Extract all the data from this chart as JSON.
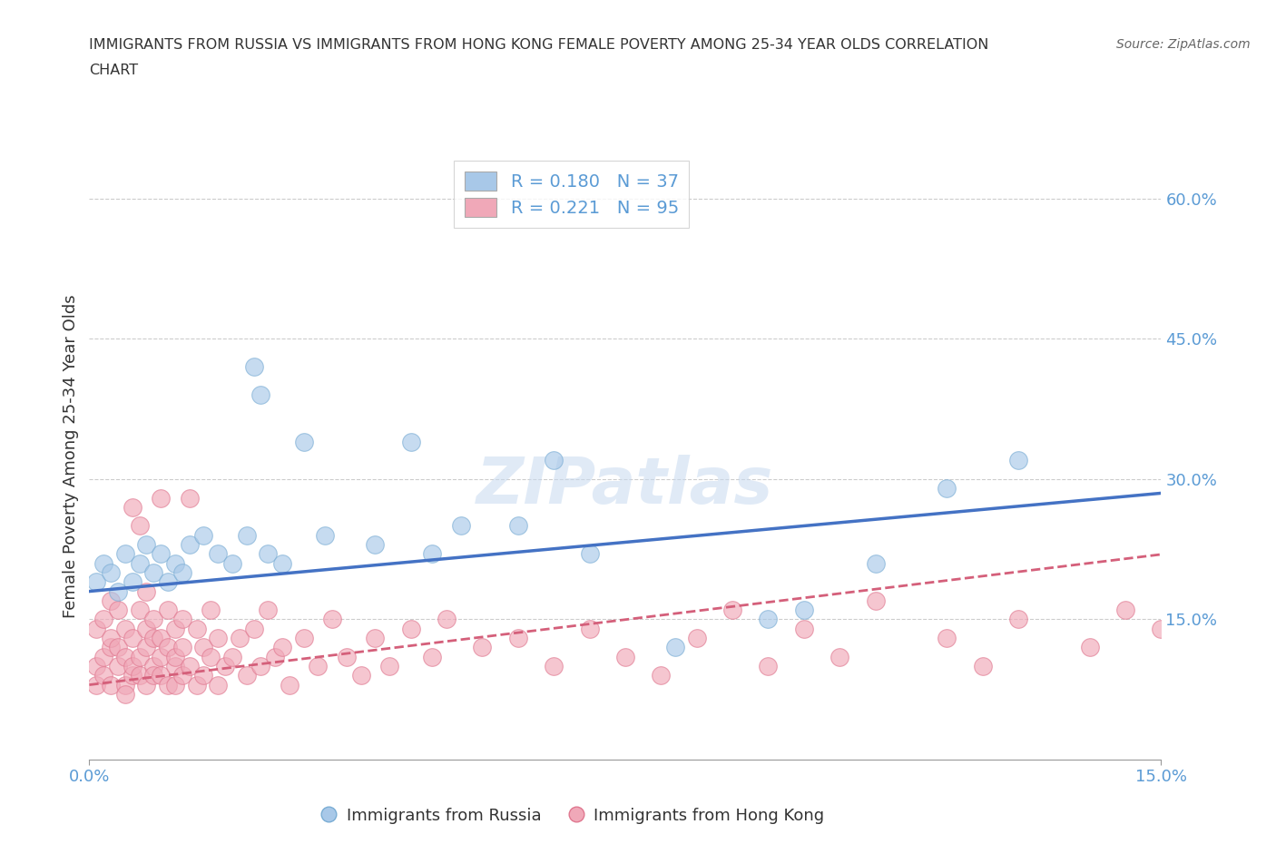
{
  "title_line1": "IMMIGRANTS FROM RUSSIA VS IMMIGRANTS FROM HONG KONG FEMALE POVERTY AMONG 25-34 YEAR OLDS CORRELATION",
  "title_line2": "CHART",
  "source": "Source: ZipAtlas.com",
  "ylabel": "Female Poverty Among 25-34 Year Olds",
  "xlim": [
    0.0,
    0.15
  ],
  "ylim": [
    0.0,
    0.65
  ],
  "ytick_positions": [
    0.15,
    0.3,
    0.45,
    0.6
  ],
  "ytick_labels": [
    "15.0%",
    "30.0%",
    "45.0%",
    "60.0%"
  ],
  "russia_color": "#a8c8e8",
  "russia_edge_color": "#7aadd4",
  "hk_color": "#f0a8b8",
  "hk_edge_color": "#e07890",
  "russia_line_color": "#4472c4",
  "hk_line_color": "#d45f7a",
  "tick_color": "#5b9bd5",
  "R_russia": 0.18,
  "N_russia": 37,
  "R_hk": 0.221,
  "N_hk": 95,
  "legend_label_russia": "Immigrants from Russia",
  "legend_label_hk": "Immigrants from Hong Kong",
  "russia_line_intercept": 0.18,
  "russia_line_slope": 0.7,
  "hk_line_intercept": 0.08,
  "hk_line_slope": 0.93,
  "russia_x": [
    0.001,
    0.002,
    0.003,
    0.004,
    0.005,
    0.006,
    0.007,
    0.008,
    0.009,
    0.01,
    0.011,
    0.012,
    0.013,
    0.014,
    0.016,
    0.018,
    0.02,
    0.022,
    0.023,
    0.024,
    0.025,
    0.027,
    0.03,
    0.033,
    0.04,
    0.045,
    0.048,
    0.052,
    0.06,
    0.065,
    0.07,
    0.082,
    0.095,
    0.1,
    0.11,
    0.12,
    0.13
  ],
  "russia_y": [
    0.19,
    0.21,
    0.2,
    0.18,
    0.22,
    0.19,
    0.21,
    0.23,
    0.2,
    0.22,
    0.19,
    0.21,
    0.2,
    0.23,
    0.24,
    0.22,
    0.21,
    0.24,
    0.42,
    0.39,
    0.22,
    0.21,
    0.34,
    0.24,
    0.23,
    0.34,
    0.22,
    0.25,
    0.25,
    0.32,
    0.22,
    0.12,
    0.15,
    0.16,
    0.21,
    0.29,
    0.32
  ],
  "hk_x": [
    0.001,
    0.001,
    0.001,
    0.002,
    0.002,
    0.002,
    0.003,
    0.003,
    0.003,
    0.003,
    0.004,
    0.004,
    0.004,
    0.005,
    0.005,
    0.005,
    0.005,
    0.006,
    0.006,
    0.006,
    0.006,
    0.007,
    0.007,
    0.007,
    0.007,
    0.008,
    0.008,
    0.008,
    0.008,
    0.009,
    0.009,
    0.009,
    0.009,
    0.01,
    0.01,
    0.01,
    0.01,
    0.011,
    0.011,
    0.011,
    0.012,
    0.012,
    0.012,
    0.012,
    0.013,
    0.013,
    0.013,
    0.014,
    0.014,
    0.015,
    0.015,
    0.016,
    0.016,
    0.017,
    0.017,
    0.018,
    0.018,
    0.019,
    0.02,
    0.021,
    0.022,
    0.023,
    0.024,
    0.025,
    0.026,
    0.027,
    0.028,
    0.03,
    0.032,
    0.034,
    0.036,
    0.038,
    0.04,
    0.042,
    0.045,
    0.048,
    0.05,
    0.055,
    0.06,
    0.065,
    0.07,
    0.075,
    0.08,
    0.085,
    0.09,
    0.095,
    0.1,
    0.105,
    0.11,
    0.12,
    0.125,
    0.13,
    0.14,
    0.145,
    0.15
  ],
  "hk_y": [
    0.1,
    0.14,
    0.08,
    0.11,
    0.15,
    0.09,
    0.17,
    0.12,
    0.08,
    0.13,
    0.16,
    0.1,
    0.12,
    0.14,
    0.08,
    0.11,
    0.07,
    0.09,
    0.27,
    0.13,
    0.1,
    0.16,
    0.11,
    0.25,
    0.09,
    0.14,
    0.18,
    0.08,
    0.12,
    0.1,
    0.15,
    0.09,
    0.13,
    0.11,
    0.28,
    0.09,
    0.13,
    0.08,
    0.16,
    0.12,
    0.1,
    0.14,
    0.08,
    0.11,
    0.15,
    0.09,
    0.12,
    0.28,
    0.1,
    0.14,
    0.08,
    0.12,
    0.09,
    0.16,
    0.11,
    0.13,
    0.08,
    0.1,
    0.11,
    0.13,
    0.09,
    0.14,
    0.1,
    0.16,
    0.11,
    0.12,
    0.08,
    0.13,
    0.1,
    0.15,
    0.11,
    0.09,
    0.13,
    0.1,
    0.14,
    0.11,
    0.15,
    0.12,
    0.13,
    0.1,
    0.14,
    0.11,
    0.09,
    0.13,
    0.16,
    0.1,
    0.14,
    0.11,
    0.17,
    0.13,
    0.1,
    0.15,
    0.12,
    0.16,
    0.14
  ]
}
